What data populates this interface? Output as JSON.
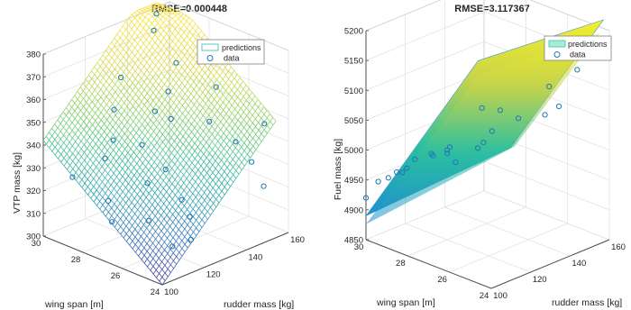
{
  "chart_data": [
    {
      "type": "surface",
      "title": "RMSE=0.000448",
      "xlabel": "rudder mass [kg]",
      "ylabel": "wing span [m]",
      "zlabel": "VTP mass [kg]",
      "xticks": [
        "100",
        "120",
        "140",
        "160"
      ],
      "yticks": [
        "24",
        "26",
        "28",
        "30"
      ],
      "zticks": [
        "300",
        "310",
        "320",
        "330",
        "340",
        "350",
        "360",
        "370",
        "380"
      ],
      "xlim": [
        100,
        160
      ],
      "ylim": [
        24,
        30
      ],
      "zlim": [
        300,
        380
      ],
      "surface_style": "mesh",
      "legend": [
        "predictions",
        "data"
      ],
      "legend_position": "top-right",
      "grid": true,
      "data_points": [
        {
          "x": 150,
          "y": 29.6,
          "z": 380
        },
        {
          "x": 145,
          "y": 29.2,
          "z": 376
        },
        {
          "x": 155,
          "y": 27.6,
          "z": 369
        },
        {
          "x": 150,
          "y": 28.6,
          "z": 362
        },
        {
          "x": 135,
          "y": 29.8,
          "z": 357
        },
        {
          "x": 152,
          "y": 26.8,
          "z": 357
        },
        {
          "x": 128,
          "y": 29.4,
          "z": 347
        },
        {
          "x": 150,
          "y": 29.0,
          "z": 348
        },
        {
          "x": 122,
          "y": 28.8,
          "z": 338
        },
        {
          "x": 140,
          "y": 27.8,
          "z": 344
        },
        {
          "x": 145,
          "y": 26.4,
          "z": 346
        },
        {
          "x": 138,
          "y": 28.4,
          "z": 346
        },
        {
          "x": 120,
          "y": 29.0,
          "z": 330
        },
        {
          "x": 130,
          "y": 28.2,
          "z": 335
        },
        {
          "x": 158,
          "y": 25.0,
          "z": 345
        },
        {
          "x": 112,
          "y": 29.8,
          "z": 322
        },
        {
          "x": 128,
          "y": 26.8,
          "z": 330
        },
        {
          "x": 150,
          "y": 25.6,
          "z": 338
        },
        {
          "x": 112,
          "y": 28.0,
          "z": 318
        },
        {
          "x": 125,
          "y": 27.4,
          "z": 323
        },
        {
          "x": 150,
          "y": 24.8,
          "z": 332
        },
        {
          "x": 110,
          "y": 27.6,
          "z": 311
        },
        {
          "x": 118,
          "y": 26.6,
          "z": 312
        },
        {
          "x": 130,
          "y": 26.2,
          "z": 318
        },
        {
          "x": 152,
          "y": 24.4,
          "z": 322
        },
        {
          "x": 118,
          "y": 25.4,
          "z": 305
        },
        {
          "x": 125,
          "y": 25.2,
          "z": 306
        },
        {
          "x": 130,
          "y": 25.8,
          "z": 312
        }
      ]
    },
    {
      "type": "surface",
      "title": "RMSE=3.117367",
      "xlabel": "rudder mass [kg]",
      "ylabel": "wing span [m]",
      "zlabel": "Fuel mass [kg]",
      "xticks": [
        "100",
        "120",
        "140",
        "160"
      ],
      "yticks": [
        "24",
        "26",
        "28",
        "30"
      ],
      "zticks": [
        "4850",
        "4900",
        "4950",
        "5000",
        "5050",
        "5100",
        "5150",
        "5200"
      ],
      "xlim": [
        100,
        160
      ],
      "ylim": [
        24,
        30
      ],
      "zlim": [
        4850,
        5200
      ],
      "surface_style": "filled",
      "legend": [
        "predictions",
        "data"
      ],
      "legend_position": "top-right",
      "grid": true,
      "data_points": [
        {
          "x": 150,
          "y": 24.6,
          "z": 5140
        },
        {
          "x": 140,
          "y": 25.0,
          "z": 5120
        },
        {
          "x": 125,
          "y": 26.8,
          "z": 5080
        },
        {
          "x": 130,
          "y": 26.4,
          "z": 5075
        },
        {
          "x": 140,
          "y": 25.2,
          "z": 5070
        },
        {
          "x": 145,
          "y": 25.0,
          "z": 5080
        },
        {
          "x": 115,
          "y": 27.4,
          "z": 5020
        },
        {
          "x": 128,
          "y": 26.6,
          "z": 5040
        },
        {
          "x": 135,
          "y": 26.0,
          "z": 5060
        },
        {
          "x": 112,
          "y": 28.0,
          "z": 5005
        },
        {
          "x": 118,
          "y": 27.8,
          "z": 5000
        },
        {
          "x": 125,
          "y": 27.0,
          "z": 5010
        },
        {
          "x": 110,
          "y": 28.6,
          "z": 4990
        },
        {
          "x": 115,
          "y": 28.2,
          "z": 4995
        },
        {
          "x": 120,
          "y": 27.6,
          "z": 4985
        },
        {
          "x": 105,
          "y": 29.0,
          "z": 4970
        },
        {
          "x": 110,
          "y": 29.2,
          "z": 4960
        },
        {
          "x": 108,
          "y": 28.8,
          "z": 4975
        },
        {
          "x": 102,
          "y": 29.6,
          "z": 4950
        },
        {
          "x": 105,
          "y": 29.4,
          "z": 4955
        },
        {
          "x": 100,
          "y": 30.0,
          "z": 4920
        },
        {
          "x": 120,
          "y": 28.0,
          "z": 5000
        },
        {
          "x": 130,
          "y": 27.2,
          "z": 5010
        }
      ]
    }
  ]
}
